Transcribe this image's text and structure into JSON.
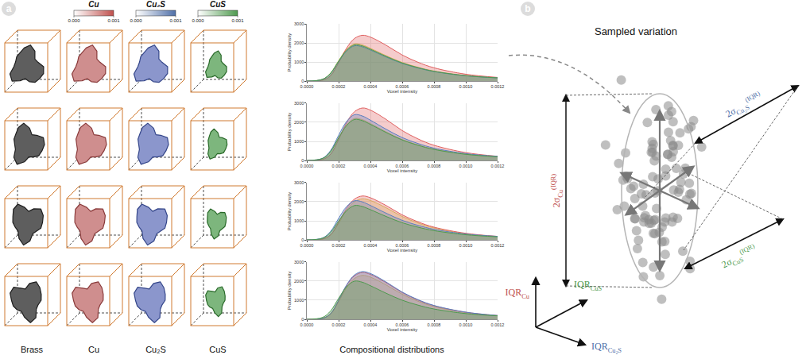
{
  "panel_a": {
    "letter": "a",
    "colorbars": [
      {
        "label": "Cu",
        "color": "#c0504d",
        "range": [
          0,
          0.001
        ],
        "ticks": [
          {
            "value": 0,
            "label": "0.000"
          },
          {
            "value": 0.001,
            "label": "0.001"
          }
        ]
      },
      {
        "label": "Cu₂S",
        "color": "#4f6fa8",
        "range": [
          0,
          0.001
        ],
        "ticks": [
          {
            "value": 0,
            "label": "0.000"
          },
          {
            "value": 0.001,
            "label": "0.001"
          }
        ]
      },
      {
        "label": "CuS",
        "color": "#4e9a4e",
        "range": [
          0,
          0.001
        ],
        "ticks": [
          {
            "value": 0,
            "label": "0.000"
          },
          {
            "value": 0.001,
            "label": "0.001"
          }
        ]
      }
    ],
    "distributions_label": "Compositional distributions"
  },
  "chart_data": [
    {
      "type": "area",
      "xlabel": "Voxel intensity",
      "ylabel": "Probability density",
      "x": [
        0,
        0.0001,
        0.00015,
        0.0002,
        0.00025,
        0.0003,
        0.00035,
        0.0004,
        0.0005,
        0.0006,
        0.0007,
        0.0008,
        0.001,
        0.0012
      ],
      "series": [
        {
          "name": "Brass",
          "color": "#d8d060",
          "values": [
            0,
            98,
            429,
            1073,
            1658,
            1950,
            1892,
            1716,
            1326,
            975,
            722,
            527,
            293,
            176
          ]
        },
        {
          "name": "Cu",
          "color": "#e06060",
          "values": [
            0,
            48,
            288,
            960,
            1728,
            2232,
            2400,
            2304,
            1872,
            1368,
            984,
            696,
            360,
            192
          ]
        },
        {
          "name": "Cu₂S",
          "color": "#5a7fc0",
          "values": [
            0,
            93,
            407,
            1018,
            1573,
            1850,
            1795,
            1628,
            1258,
            925,
            685,
            500,
            278,
            167
          ]
        },
        {
          "name": "CuS",
          "color": "#4e9a4e",
          "values": [
            0,
            95,
            418,
            1045,
            1615,
            1900,
            1843,
            1672,
            1292,
            950,
            703,
            513,
            285,
            171
          ]
        }
      ],
      "xlim": [
        0,
        0.0012
      ],
      "xticks": [
        {
          "value": 0,
          "label": "0.0000"
        },
        {
          "value": 0.0002,
          "label": "0.0002"
        },
        {
          "value": 0.0004,
          "label": "0.0004"
        },
        {
          "value": 0.0006,
          "label": "0.0006"
        },
        {
          "value": 0.0008,
          "label": "0.0008"
        },
        {
          "value": 0.001,
          "label": "0.0010"
        },
        {
          "value": 0.0012,
          "label": "0.0012"
        }
      ],
      "ylim": [
        0,
        3000
      ],
      "yticks": [
        0,
        1000,
        2000,
        3000
      ],
      "grid": true
    },
    {
      "type": "area",
      "xlabel": "Voxel intensity",
      "ylabel": "Probability density",
      "x": [
        0,
        0.0001,
        0.00015,
        0.0002,
        0.00025,
        0.0003,
        0.00035,
        0.0004,
        0.0005,
        0.0006,
        0.0007,
        0.0008,
        0.001,
        0.0012
      ],
      "series": [
        {
          "name": "Brass",
          "color": "#d8d060",
          "values": [
            0,
            110,
            484,
            1210,
            1870,
            2200,
            2134,
            1936,
            1496,
            1100,
            814,
            594,
            330,
            198
          ]
        },
        {
          "name": "Cu",
          "color": "#e06060",
          "values": [
            0,
            55,
            330,
            1100,
            1980,
            2558,
            2750,
            2640,
            2145,
            1568,
            1128,
            798,
            413,
            220
          ]
        },
        {
          "name": "Cu₂S",
          "color": "#5a7fc0",
          "values": [
            0,
            120,
            528,
            1320,
            2040,
            2400,
            2328,
            2112,
            1632,
            1200,
            888,
            648,
            360,
            216
          ]
        },
        {
          "name": "CuS",
          "color": "#4e9a4e",
          "values": [
            0,
            108,
            473,
            1183,
            1828,
            2150,
            2086,
            1892,
            1462,
            1075,
            796,
            581,
            323,
            194
          ]
        }
      ],
      "xlim": [
        0,
        0.0012
      ],
      "xticks": [
        {
          "value": 0,
          "label": "0.0000"
        },
        {
          "value": 0.0002,
          "label": "0.0002"
        },
        {
          "value": 0.0004,
          "label": "0.0004"
        },
        {
          "value": 0.0006,
          "label": "0.0006"
        },
        {
          "value": 0.0008,
          "label": "0.0008"
        },
        {
          "value": 0.001,
          "label": "0.0010"
        },
        {
          "value": 0.0012,
          "label": "0.0012"
        }
      ],
      "ylim": [
        0,
        3000
      ],
      "yticks": [
        0,
        1000,
        2000,
        3000
      ],
      "grid": true
    },
    {
      "type": "area",
      "xlabel": "Voxel intensity",
      "ylabel": "Probability density",
      "x": [
        0,
        0.0001,
        0.00015,
        0.0002,
        0.00025,
        0.0003,
        0.00035,
        0.0004,
        0.0005,
        0.0006,
        0.0007,
        0.0008,
        0.001,
        0.0012
      ],
      "series": [
        {
          "name": "Brass",
          "color": "#d8d060",
          "values": [
            0,
            43,
            258,
            860,
            1548,
            2000,
            2150,
            2064,
            1677,
            1226,
            882,
            624,
            323,
            172
          ]
        },
        {
          "name": "Cu",
          "color": "#e06060",
          "values": [
            0,
            46,
            276,
            920,
            1656,
            2139,
            2300,
            2208,
            1794,
            1311,
            943,
            667,
            345,
            184
          ]
        },
        {
          "name": "Cu₂S",
          "color": "#5a7fc0",
          "values": [
            0,
            103,
            451,
            1128,
            1743,
            2050,
            1989,
            1804,
            1394,
            1025,
            759,
            554,
            308,
            185
          ]
        },
        {
          "name": "CuS",
          "color": "#4e9a4e",
          "values": [
            0,
            90,
            396,
            990,
            1530,
            1800,
            1746,
            1584,
            1224,
            900,
            666,
            486,
            270,
            162
          ]
        }
      ],
      "xlim": [
        0,
        0.0012
      ],
      "xticks": [
        {
          "value": 0,
          "label": "0.0000"
        },
        {
          "value": 0.0002,
          "label": "0.0002"
        },
        {
          "value": 0.0004,
          "label": "0.0004"
        },
        {
          "value": 0.0006,
          "label": "0.0006"
        },
        {
          "value": 0.0008,
          "label": "0.0008"
        },
        {
          "value": 0.001,
          "label": "0.0010"
        },
        {
          "value": 0.0012,
          "label": "0.0012"
        }
      ],
      "ylim": [
        0,
        3000
      ],
      "yticks": [
        0,
        1000,
        2000,
        3000
      ],
      "grid": true
    },
    {
      "type": "area",
      "xlabel": "Voxel intensity",
      "ylabel": "Probability density",
      "x": [
        0,
        0.0001,
        0.00015,
        0.0002,
        0.00025,
        0.0003,
        0.00035,
        0.0004,
        0.0005,
        0.0006,
        0.0007,
        0.0008,
        0.001,
        0.0012
      ],
      "series": [
        {
          "name": "Brass",
          "color": "#d8d060",
          "values": [
            0,
            46,
            276,
            920,
            1656,
            2139,
            2300,
            2208,
            1794,
            1311,
            943,
            667,
            345,
            184
          ]
        },
        {
          "name": "Cu",
          "color": "#e06060",
          "values": [
            0,
            49,
            294,
            980,
            1764,
            2279,
            2450,
            2352,
            1911,
            1397,
            1005,
            711,
            368,
            196
          ]
        },
        {
          "name": "Cu₂S",
          "color": "#5a7fc0",
          "values": [
            0,
            50,
            300,
            1000,
            1800,
            2325,
            2500,
            2400,
            1950,
            1425,
            1025,
            725,
            375,
            200
          ]
        },
        {
          "name": "CuS",
          "color": "#4e9a4e",
          "values": [
            0,
            100,
            440,
            1100,
            1700,
            2000,
            1940,
            1760,
            1360,
            1000,
            740,
            540,
            300,
            180
          ]
        }
      ],
      "xlim": [
        0,
        0.0012
      ],
      "xticks": [
        {
          "value": 0,
          "label": "0.0000"
        },
        {
          "value": 0.0002,
          "label": "0.0002"
        },
        {
          "value": 0.0004,
          "label": "0.0004"
        },
        {
          "value": 0.0006,
          "label": "0.0006"
        },
        {
          "value": 0.0008,
          "label": "0.0008"
        },
        {
          "value": 0.001,
          "label": "0.0010"
        },
        {
          "value": 0.0012,
          "label": "0.0012"
        }
      ],
      "ylim": [
        0,
        3000
      ],
      "yticks": [
        0,
        1000,
        2000,
        3000
      ],
      "grid": true
    }
  ],
  "panel_b": {
    "letter": "b",
    "title": "Sampled variation",
    "axes": [
      {
        "text": "IQR",
        "sub": "Cu",
        "color": "#c0504d"
      },
      {
        "text": "IQR",
        "sub": "CuS",
        "color": "#4e9a4e"
      },
      {
        "text": "IQR",
        "sub": "Cu₂S",
        "color": "#4f6fa8"
      }
    ],
    "spreads": [
      {
        "text": "2σ",
        "sub": "Cu",
        "sup": "(IQR)",
        "color": "#c0504d"
      },
      {
        "text": "2σ",
        "sub": "Cu₂S",
        "sup": "(IQR)",
        "color": "#4f6fa8"
      },
      {
        "text": "2σ",
        "sub": "CuS",
        "sup": "(IQR)",
        "color": "#4e9a4e"
      }
    ]
  }
}
